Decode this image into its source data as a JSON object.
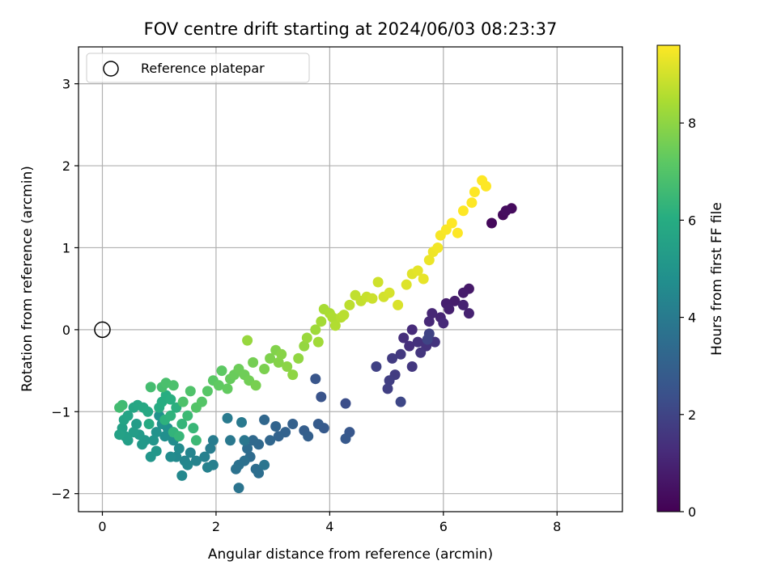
{
  "chart_data": {
    "type": "scatter",
    "title": "FOV centre drift starting at 2024/06/03 08:23:37",
    "xlabel": "Angular distance from reference (arcmin)",
    "ylabel": "Rotation from reference (arcmin)",
    "colorbar_label": "Hours from first FF file",
    "xlim": [
      -0.42,
      9.15
    ],
    "ylim": [
      -2.22,
      3.45
    ],
    "x_ticks": [
      0,
      2,
      4,
      6,
      8
    ],
    "y_ticks": [
      -2,
      -1,
      0,
      1,
      2,
      3
    ],
    "colorbar_ticks": [
      0,
      2,
      4,
      6,
      8
    ],
    "colorbar_range": [
      0,
      9.6
    ],
    "colormap": "viridis",
    "grid": true,
    "legend": {
      "placement": "upper-left",
      "entries": [
        "Reference platepar"
      ]
    },
    "reference_point": {
      "x": 0,
      "y": 0,
      "label": "Reference platepar"
    },
    "points": [
      [
        6.85,
        1.3,
        0.2
      ],
      [
        7.05,
        1.4,
        0.25
      ],
      [
        7.2,
        1.48,
        0.3
      ],
      [
        7.1,
        1.45,
        0.35
      ],
      [
        6.45,
        0.5,
        0.7
      ],
      [
        6.35,
        0.45,
        0.75
      ],
      [
        6.2,
        0.35,
        0.8
      ],
      [
        6.05,
        0.32,
        0.85
      ],
      [
        6.1,
        0.25,
        0.9
      ],
      [
        6.45,
        0.2,
        0.95
      ],
      [
        6.35,
        0.3,
        1.0
      ],
      [
        5.95,
        0.15,
        1.05
      ],
      [
        5.8,
        0.2,
        1.1
      ],
      [
        5.75,
        0.1,
        1.15
      ],
      [
        6.0,
        0.08,
        1.2
      ],
      [
        5.45,
        0.0,
        1.25
      ],
      [
        5.3,
        -0.1,
        1.3
      ],
      [
        5.4,
        -0.2,
        1.35
      ],
      [
        5.55,
        -0.15,
        1.4
      ],
      [
        5.7,
        -0.2,
        1.45
      ],
      [
        5.85,
        -0.15,
        1.5
      ],
      [
        5.6,
        -0.28,
        1.55
      ],
      [
        5.45,
        -0.45,
        1.6
      ],
      [
        5.25,
        -0.3,
        1.65
      ],
      [
        5.1,
        -0.35,
        1.7
      ],
      [
        5.15,
        -0.55,
        1.75
      ],
      [
        5.05,
        -0.62,
        1.8
      ],
      [
        5.02,
        -0.72,
        1.85
      ],
      [
        4.82,
        -0.45,
        1.9
      ],
      [
        5.75,
        -0.05,
        1.95
      ],
      [
        5.72,
        -0.12,
        2.0
      ],
      [
        5.25,
        -0.88,
        2.1
      ],
      [
        4.28,
        -0.9,
        2.3
      ],
      [
        3.85,
        -0.82,
        2.5
      ],
      [
        3.75,
        -0.6,
        2.6
      ],
      [
        4.35,
        -1.25,
        2.65
      ],
      [
        4.28,
        -1.33,
        2.7
      ],
      [
        3.9,
        -1.2,
        2.75
      ],
      [
        3.8,
        -1.15,
        2.8
      ],
      [
        3.55,
        -1.23,
        2.9
      ],
      [
        3.62,
        -1.3,
        2.95
      ],
      [
        3.35,
        -1.15,
        3.0
      ],
      [
        3.22,
        -1.25,
        3.05
      ],
      [
        3.1,
        -1.3,
        3.1
      ],
      [
        3.05,
        -1.18,
        3.15
      ],
      [
        2.95,
        -1.35,
        3.2
      ],
      [
        2.85,
        -1.1,
        3.25
      ],
      [
        2.75,
        -1.4,
        3.3
      ],
      [
        2.65,
        -1.35,
        3.35
      ],
      [
        2.6,
        -1.55,
        3.4
      ],
      [
        2.55,
        -1.45,
        3.45
      ],
      [
        2.7,
        -1.7,
        3.5
      ],
      [
        2.75,
        -1.75,
        3.55
      ],
      [
        2.5,
        -1.6,
        3.6
      ],
      [
        2.4,
        -1.65,
        3.65
      ],
      [
        2.35,
        -1.7,
        3.7
      ],
      [
        2.4,
        -1.93,
        3.75
      ],
      [
        2.85,
        -1.65,
        3.8
      ],
      [
        2.5,
        -1.35,
        3.85
      ],
      [
        2.25,
        -1.35,
        3.9
      ],
      [
        2.45,
        -1.13,
        3.95
      ],
      [
        2.2,
        -1.08,
        4.0
      ],
      [
        1.95,
        -1.35,
        4.05
      ],
      [
        1.9,
        -1.45,
        4.1
      ],
      [
        1.95,
        -1.65,
        4.15
      ],
      [
        1.8,
        -1.55,
        4.2
      ],
      [
        1.85,
        -1.68,
        4.25
      ],
      [
        1.65,
        -1.6,
        4.3
      ],
      [
        1.55,
        -1.5,
        4.35
      ],
      [
        1.45,
        -1.6,
        4.4
      ],
      [
        1.5,
        -1.65,
        4.45
      ],
      [
        1.4,
        -1.78,
        4.5
      ],
      [
        1.3,
        -1.55,
        4.55
      ],
      [
        1.35,
        -1.45,
        4.6
      ],
      [
        1.2,
        -1.55,
        4.65
      ],
      [
        1.25,
        -1.35,
        4.7
      ],
      [
        1.1,
        -1.3,
        4.75
      ],
      [
        1.15,
        -1.2,
        4.8
      ],
      [
        1.05,
        -1.15,
        4.85
      ],
      [
        1.0,
        -1.05,
        4.9
      ],
      [
        0.95,
        -1.25,
        4.95
      ],
      [
        0.9,
        -1.35,
        5.0
      ],
      [
        0.85,
        -1.55,
        5.05
      ],
      [
        0.95,
        -1.48,
        5.1
      ],
      [
        0.75,
        -1.35,
        5.15
      ],
      [
        0.7,
        -1.4,
        5.2
      ],
      [
        0.65,
        -1.28,
        5.25
      ],
      [
        0.6,
        -1.15,
        5.3
      ],
      [
        0.55,
        -1.25,
        5.35
      ],
      [
        0.45,
        -1.35,
        5.4
      ],
      [
        0.4,
        -1.3,
        5.45
      ],
      [
        0.35,
        -1.2,
        5.5
      ],
      [
        0.3,
        -1.28,
        5.55
      ],
      [
        0.38,
        -1.1,
        5.6
      ],
      [
        0.45,
        -1.05,
        5.65
      ],
      [
        0.55,
        -0.95,
        5.7
      ],
      [
        0.62,
        -0.92,
        5.75
      ],
      [
        0.72,
        -0.95,
        5.8
      ],
      [
        0.8,
        -1.0,
        5.85
      ],
      [
        0.82,
        -1.15,
        5.9
      ],
      [
        1.0,
        -0.95,
        5.95
      ],
      [
        1.05,
        -0.88,
        6.0
      ],
      [
        1.12,
        -0.8,
        6.05
      ],
      [
        1.2,
        -0.85,
        6.1
      ],
      [
        1.3,
        -0.95,
        6.15
      ],
      [
        1.1,
        -1.1,
        6.2
      ],
      [
        1.2,
        -1.05,
        6.25
      ],
      [
        1.25,
        -1.25,
        6.3
      ],
      [
        1.4,
        -1.15,
        6.35
      ],
      [
        1.35,
        -1.3,
        6.4
      ],
      [
        1.6,
        -1.2,
        6.45
      ],
      [
        1.65,
        -1.35,
        6.5
      ],
      [
        1.5,
        -1.05,
        6.55
      ],
      [
        0.35,
        -0.92,
        6.6
      ],
      [
        0.3,
        -0.95,
        6.65
      ],
      [
        0.85,
        -0.7,
        6.7
      ],
      [
        1.05,
        -0.7,
        6.75
      ],
      [
        1.12,
        -0.65,
        6.8
      ],
      [
        1.25,
        -0.68,
        6.85
      ],
      [
        1.42,
        -0.88,
        6.9
      ],
      [
        1.55,
        -0.75,
        6.95
      ],
      [
        1.65,
        -0.95,
        7.0
      ],
      [
        1.75,
        -0.88,
        7.05
      ],
      [
        1.85,
        -0.75,
        7.1
      ],
      [
        1.95,
        -0.62,
        7.15
      ],
      [
        2.1,
        -0.5,
        7.2
      ],
      [
        2.05,
        -0.68,
        7.25
      ],
      [
        2.2,
        -0.72,
        7.3
      ],
      [
        2.25,
        -0.6,
        7.35
      ],
      [
        2.32,
        -0.55,
        7.4
      ],
      [
        2.4,
        -0.48,
        7.45
      ],
      [
        2.5,
        -0.55,
        7.5
      ],
      [
        2.58,
        -0.62,
        7.55
      ],
      [
        2.65,
        -0.4,
        7.6
      ],
      [
        2.7,
        -0.68,
        7.65
      ],
      [
        2.85,
        -0.48,
        7.7
      ],
      [
        2.95,
        -0.35,
        7.75
      ],
      [
        3.05,
        -0.25,
        7.8
      ],
      [
        3.1,
        -0.4,
        7.85
      ],
      [
        3.15,
        -0.3,
        7.9
      ],
      [
        3.25,
        -0.45,
        7.95
      ],
      [
        3.35,
        -0.55,
        8.0
      ],
      [
        3.45,
        -0.35,
        8.05
      ],
      [
        3.55,
        -0.2,
        8.1
      ],
      [
        2.55,
        -0.13,
        8.15
      ],
      [
        3.6,
        -0.1,
        8.2
      ],
      [
        3.75,
        0.0,
        8.25
      ],
      [
        3.8,
        -0.15,
        8.3
      ],
      [
        3.85,
        0.1,
        8.35
      ],
      [
        3.9,
        0.25,
        8.4
      ],
      [
        4.0,
        0.2,
        8.45
      ],
      [
        4.05,
        0.15,
        8.5
      ],
      [
        4.1,
        0.05,
        8.55
      ],
      [
        4.2,
        0.15,
        8.6
      ],
      [
        4.25,
        0.18,
        8.65
      ],
      [
        4.35,
        0.3,
        8.7
      ],
      [
        4.45,
        0.42,
        8.75
      ],
      [
        4.55,
        0.35,
        8.8
      ],
      [
        4.65,
        0.4,
        8.85
      ],
      [
        4.75,
        0.38,
        8.9
      ],
      [
        4.85,
        0.58,
        8.95
      ],
      [
        4.95,
        0.4,
        9.0
      ],
      [
        5.05,
        0.45,
        9.05
      ],
      [
        5.2,
        0.3,
        9.1
      ],
      [
        5.35,
        0.55,
        9.15
      ],
      [
        5.45,
        0.68,
        9.2
      ],
      [
        5.55,
        0.72,
        9.25
      ],
      [
        5.65,
        0.62,
        9.3
      ],
      [
        5.75,
        0.85,
        9.35
      ],
      [
        5.82,
        0.95,
        9.4
      ],
      [
        5.9,
        1.0,
        9.45
      ],
      [
        5.95,
        1.15,
        9.5
      ],
      [
        6.05,
        1.22,
        9.55
      ],
      [
        6.15,
        1.3,
        9.6
      ],
      [
        6.25,
        1.18,
        9.65
      ],
      [
        6.35,
        1.45,
        9.7
      ],
      [
        6.5,
        1.55,
        9.75
      ],
      [
        6.55,
        1.68,
        9.8
      ],
      [
        6.68,
        1.82,
        9.85
      ],
      [
        6.75,
        1.75,
        9.9
      ]
    ]
  }
}
